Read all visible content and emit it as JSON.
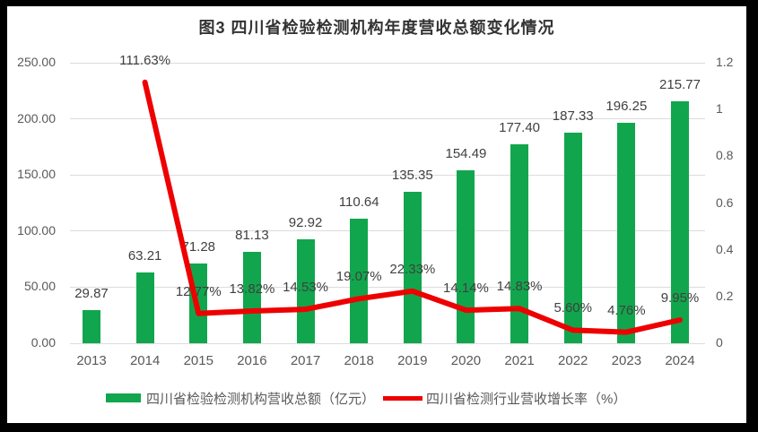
{
  "title": "图3  四川省检验检测机构年度营收总额变化情况",
  "colors": {
    "bar": "#11A64D",
    "line": "#EE0000",
    "grid": "#DCDCDC",
    "data_label": "#404040",
    "axis_text": "#595959",
    "frame": "#000000",
    "background": "#FFFFFF"
  },
  "legend": {
    "bar_series_label": "四川省检验检测机构营收总额（亿元）",
    "line_series_label": "四川省检测行业营收增长率（%）"
  },
  "chart_data": {
    "type": "bar",
    "subtype": "bar+line combo, dual axis",
    "title": "图3  四川省检验检测机构年度营收总额变化情况",
    "categories": [
      "2013",
      "2014",
      "2015",
      "2016",
      "2017",
      "2018",
      "2019",
      "2020",
      "2021",
      "2022",
      "2023",
      "2024"
    ],
    "series": [
      {
        "name": "四川省检验检测机构营收总额（亿元）",
        "type": "bar",
        "axis": "left",
        "color": "#11A64D",
        "values": [
          29.87,
          63.21,
          71.28,
          81.13,
          92.92,
          110.64,
          135.35,
          154.49,
          177.4,
          187.33,
          196.25,
          215.77
        ],
        "labels": [
          "29.87",
          "63.21",
          "71.28",
          "81.13",
          "92.92",
          "110.64",
          "135.35",
          "154.49",
          "177.40",
          "187.33",
          "196.25",
          "215.77"
        ]
      },
      {
        "name": "四川省检测行业营收增长率（%）",
        "type": "line",
        "axis": "right",
        "color": "#EE0000",
        "values": [
          null,
          1.1163,
          0.1277,
          0.1382,
          0.1453,
          0.1907,
          0.2233,
          0.1414,
          0.1483,
          0.056,
          0.0476,
          0.0995
        ],
        "labels": [
          null,
          "111.63%",
          "12.77%",
          "13.82%",
          "14.53%",
          "19.07%",
          "22.33%",
          "14.14%",
          "14.83%",
          "5.60%",
          "4.76%",
          "9.95%"
        ]
      }
    ],
    "left_axis": {
      "min": 0,
      "max": 250,
      "tick_values": [
        0,
        50,
        100,
        150,
        200,
        250
      ],
      "tick_labels": [
        "0.00",
        "50.00",
        "100.00",
        "150.00",
        "200.00",
        "250.00"
      ]
    },
    "right_axis": {
      "min": 0,
      "max": 1.2,
      "tick_values": [
        0,
        0.2,
        0.4,
        0.6,
        0.8,
        1,
        1.2
      ],
      "tick_labels": [
        "0",
        "0.2",
        "0.4",
        "0.6",
        "0.8",
        "1",
        "1.2"
      ]
    },
    "grid": true,
    "legend_position": "bottom"
  }
}
